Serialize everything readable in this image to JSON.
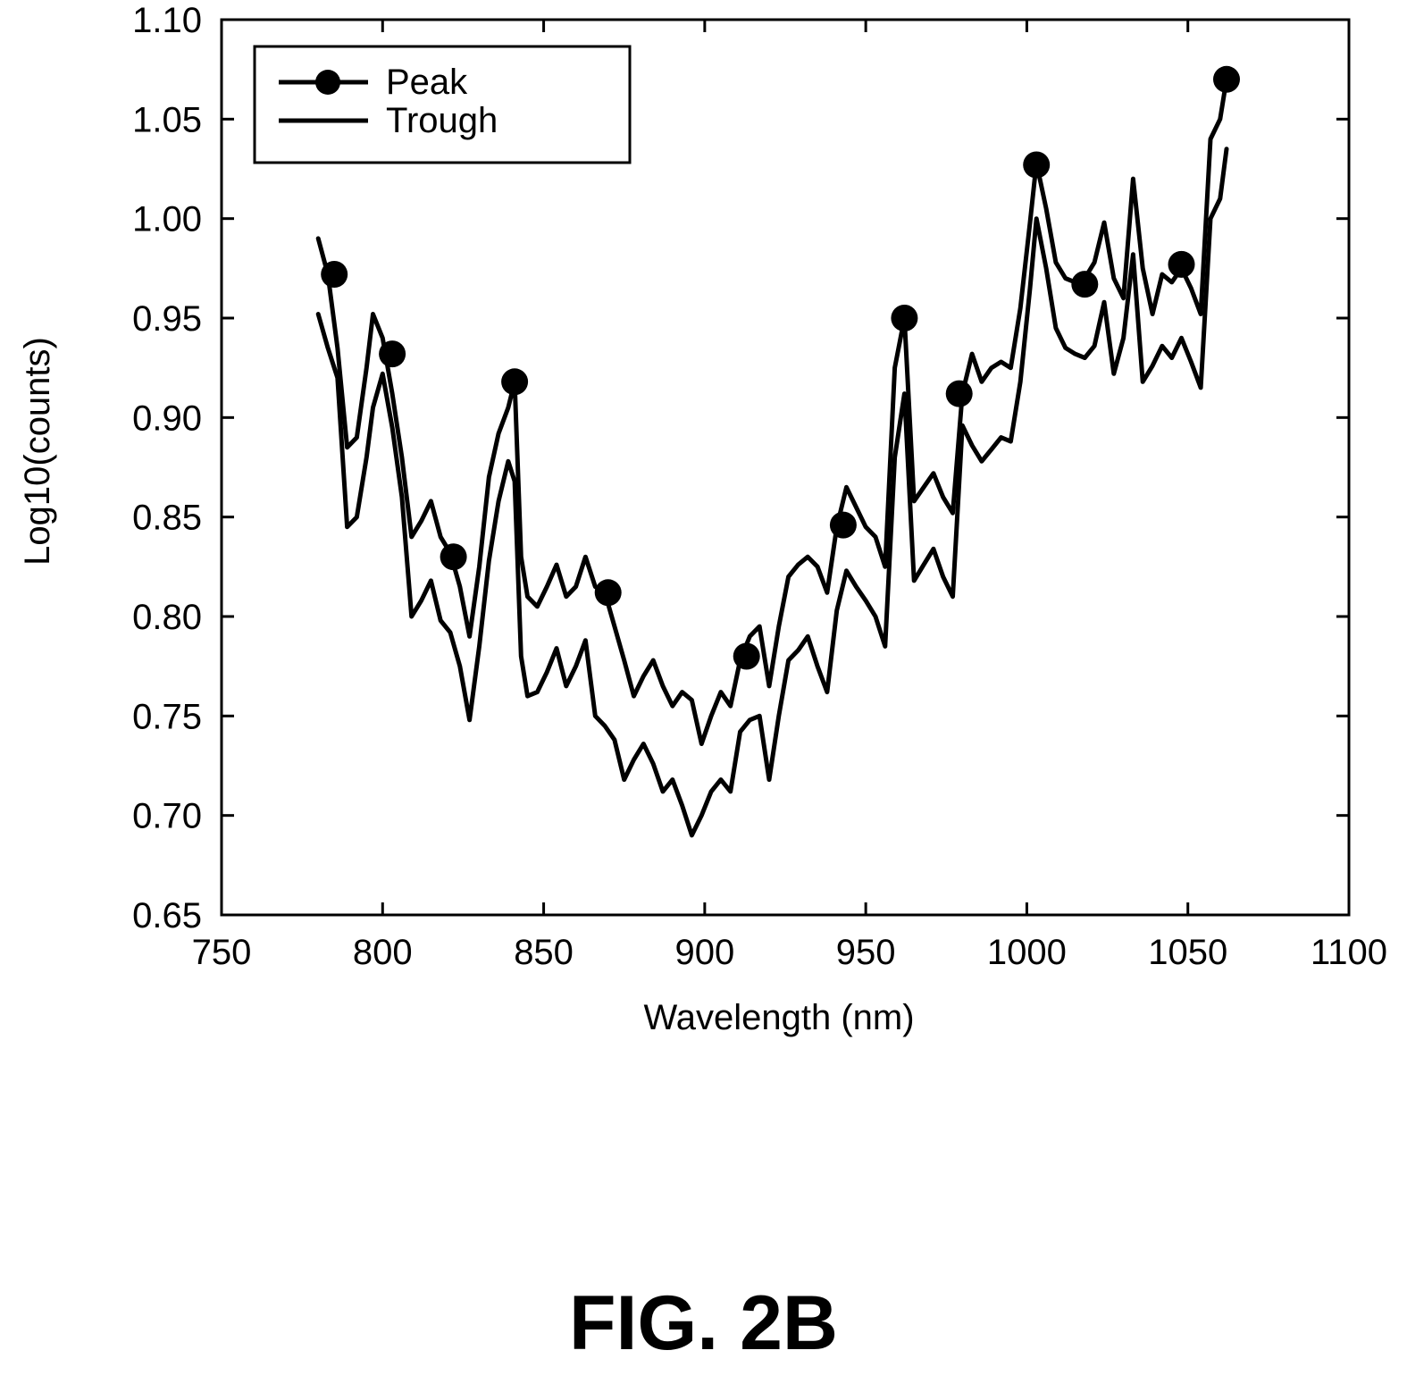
{
  "figure_caption": "FIG. 2B",
  "chart_data": {
    "type": "line",
    "xlabel": "Wavelength (nm)",
    "ylabel": "Log10(counts)",
    "xlim": [
      750,
      1100
    ],
    "ylim": [
      0.65,
      1.1
    ],
    "x_ticks": [
      750,
      800,
      850,
      900,
      950,
      1000,
      1050,
      1100
    ],
    "x_tick_labels": [
      "750",
      "800",
      "850",
      "900",
      "950",
      "1000",
      "1050",
      "1100"
    ],
    "y_ticks": [
      0.65,
      0.7,
      0.75,
      0.8,
      0.85,
      0.9,
      0.95,
      1.0,
      1.05,
      1.1
    ],
    "y_tick_labels": [
      "0.65",
      "0.70",
      "0.75",
      "0.80",
      "0.85",
      "0.90",
      "0.95",
      "1.00",
      "1.05",
      "1.10"
    ],
    "grid": false,
    "legend_position": "top-left",
    "series": [
      {
        "name": "Peak",
        "marker": "circle",
        "color": "#000000",
        "x": [
          780,
          783,
          786,
          789,
          792,
          795,
          797,
          800,
          803,
          806,
          809,
          812,
          815,
          818,
          821,
          824,
          827,
          830,
          833,
          836,
          839,
          841,
          843,
          845,
          848,
          851,
          854,
          857,
          860,
          863,
          866,
          869,
          872,
          875,
          878,
          881,
          884,
          887,
          890,
          893,
          896,
          899,
          902,
          905,
          908,
          911,
          914,
          917,
          920,
          923,
          926,
          929,
          932,
          935,
          938,
          941,
          944,
          947,
          950,
          953,
          956,
          959,
          962,
          965,
          968,
          971,
          974,
          977,
          980,
          983,
          986,
          989,
          992,
          995,
          998,
          1001,
          1003,
          1006,
          1009,
          1012,
          1015,
          1018,
          1021,
          1024,
          1027,
          1030,
          1033,
          1036,
          1039,
          1042,
          1045,
          1048,
          1051,
          1054,
          1057,
          1060,
          1062
        ],
        "y": [
          0.99,
          0.972,
          0.935,
          0.885,
          0.89,
          0.925,
          0.952,
          0.94,
          0.912,
          0.88,
          0.84,
          0.848,
          0.858,
          0.84,
          0.832,
          0.815,
          0.79,
          0.825,
          0.87,
          0.892,
          0.905,
          0.918,
          0.83,
          0.81,
          0.805,
          0.815,
          0.826,
          0.81,
          0.815,
          0.83,
          0.815,
          0.812,
          0.795,
          0.778,
          0.76,
          0.77,
          0.778,
          0.765,
          0.755,
          0.762,
          0.758,
          0.736,
          0.75,
          0.762,
          0.755,
          0.778,
          0.79,
          0.795,
          0.765,
          0.795,
          0.82,
          0.826,
          0.83,
          0.825,
          0.812,
          0.845,
          0.865,
          0.855,
          0.845,
          0.84,
          0.825,
          0.925,
          0.95,
          0.858,
          0.865,
          0.872,
          0.86,
          0.852,
          0.912,
          0.932,
          0.918,
          0.925,
          0.928,
          0.925,
          0.955,
          0.998,
          1.028,
          1.005,
          0.978,
          0.97,
          0.968,
          0.97,
          0.978,
          0.998,
          0.97,
          0.96,
          1.02,
          0.975,
          0.952,
          0.972,
          0.968,
          0.975,
          0.965,
          0.952,
          1.04,
          1.05,
          1.07
        ],
        "marker_x": [
          785,
          803,
          822,
          841,
          870,
          913,
          943,
          962,
          979,
          1003,
          1018,
          1048,
          1062
        ],
        "marker_y": [
          0.972,
          0.932,
          0.83,
          0.918,
          0.812,
          0.78,
          0.846,
          0.95,
          0.912,
          1.027,
          0.967,
          0.977,
          1.07
        ]
      },
      {
        "name": "Trough",
        "marker": "none",
        "color": "#000000",
        "x": [
          780,
          783,
          786,
          789,
          792,
          795,
          797,
          800,
          803,
          806,
          809,
          812,
          815,
          818,
          821,
          824,
          827,
          830,
          833,
          836,
          839,
          841,
          843,
          845,
          848,
          851,
          854,
          857,
          860,
          863,
          866,
          869,
          872,
          875,
          878,
          881,
          884,
          887,
          890,
          893,
          896,
          899,
          902,
          905,
          908,
          911,
          914,
          917,
          920,
          923,
          926,
          929,
          932,
          935,
          938,
          941,
          944,
          947,
          950,
          953,
          956,
          959,
          962,
          965,
          968,
          971,
          974,
          977,
          980,
          983,
          986,
          989,
          992,
          995,
          998,
          1001,
          1003,
          1006,
          1009,
          1012,
          1015,
          1018,
          1021,
          1024,
          1027,
          1030,
          1033,
          1036,
          1039,
          1042,
          1045,
          1048,
          1051,
          1054,
          1057,
          1060,
          1062
        ],
        "y": [
          0.952,
          0.935,
          0.92,
          0.845,
          0.85,
          0.88,
          0.905,
          0.922,
          0.895,
          0.86,
          0.8,
          0.808,
          0.818,
          0.798,
          0.792,
          0.775,
          0.748,
          0.785,
          0.828,
          0.858,
          0.878,
          0.868,
          0.78,
          0.76,
          0.762,
          0.772,
          0.784,
          0.765,
          0.775,
          0.788,
          0.75,
          0.745,
          0.738,
          0.718,
          0.728,
          0.736,
          0.726,
          0.712,
          0.718,
          0.705,
          0.69,
          0.7,
          0.712,
          0.718,
          0.712,
          0.742,
          0.748,
          0.75,
          0.718,
          0.75,
          0.778,
          0.783,
          0.79,
          0.775,
          0.762,
          0.803,
          0.823,
          0.815,
          0.808,
          0.8,
          0.785,
          0.88,
          0.912,
          0.818,
          0.826,
          0.834,
          0.82,
          0.81,
          0.896,
          0.886,
          0.878,
          0.884,
          0.89,
          0.888,
          0.918,
          0.965,
          1.0,
          0.975,
          0.945,
          0.935,
          0.932,
          0.93,
          0.936,
          0.958,
          0.922,
          0.94,
          0.982,
          0.918,
          0.926,
          0.936,
          0.93,
          0.94,
          0.928,
          0.915,
          1.0,
          1.01,
          1.035
        ]
      }
    ]
  }
}
